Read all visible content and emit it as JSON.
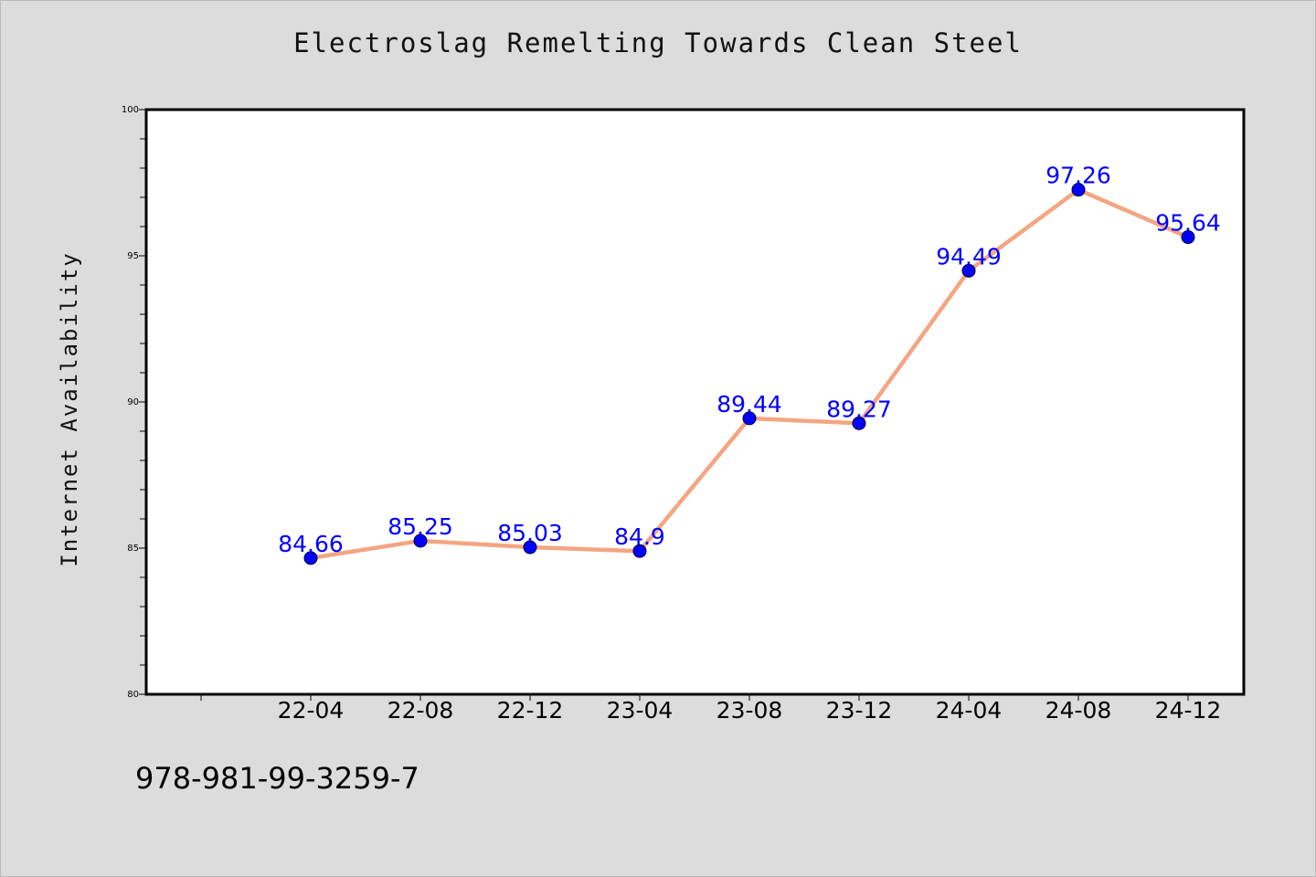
{
  "chart_data": {
    "type": "line",
    "title": "Electroslag Remelting Towards Clean Steel",
    "ylabel": "Internet Availability",
    "xlabel": "",
    "categories": [
      "22-04",
      "22-08",
      "22-12",
      "23-04",
      "23-08",
      "23-12",
      "24-04",
      "24-08",
      "24-12"
    ],
    "series": [
      {
        "values": [
          84.66,
          85.25,
          85.03,
          84.9,
          89.44,
          89.27,
          94.49,
          97.26,
          95.64
        ],
        "labels": [
          "84.66",
          "85.25",
          "85.03",
          "84.9",
          "89.44",
          "89.27",
          "94.49",
          "97.26",
          "95.64"
        ],
        "line_color": "#f4a582",
        "marker_color": "#0000ff",
        "label_color": "#0000ff"
      }
    ],
    "ylim": [
      80,
      100
    ],
    "yticks": [
      80,
      85,
      90,
      95,
      100
    ],
    "ytick_labels": [
      "80",
      "85",
      "90",
      "95",
      "100"
    ],
    "grid": false,
    "legend": "none"
  },
  "footer": {
    "isbn": "978-981-99-3259-7"
  },
  "colors": {
    "background": "#dcdcdc",
    "plot_background": "#ffffff"
  }
}
